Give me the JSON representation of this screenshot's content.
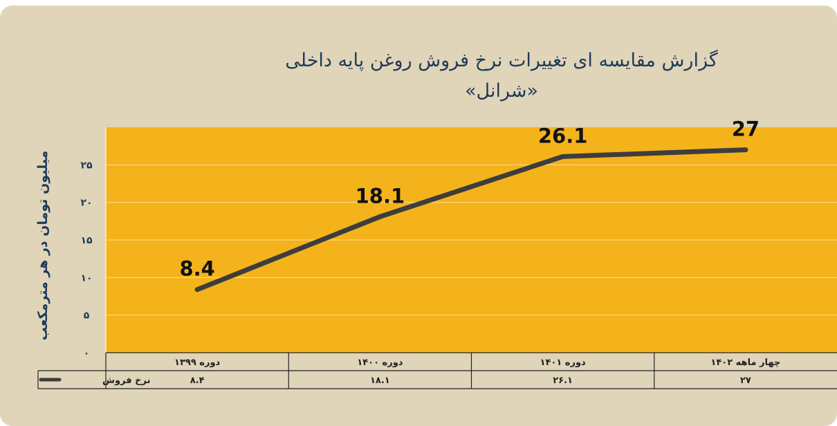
{
  "title_line1": "گزارش مقایسه ای تغییرات نرخ فروش روغن پایه داخلی",
  "title_line2": "«شرانل»",
  "chart_data": {
    "type": "line",
    "title": "گزارش مقایسه ای تغییرات نرخ فروش روغن پایه داخلی «شرانل»",
    "ylabel": "میلیون تومان در هر مترمکعب",
    "xlabel": "",
    "categories": [
      "دوره ۱۳۹۹",
      "دوره ۱۴۰۰",
      "دوره ۱۴۰۱",
      "چهار ماهه ۱۴۰۲"
    ],
    "y_ticks": [
      {
        "value": 0,
        "label": "۰"
      },
      {
        "value": 5,
        "label": "۵"
      },
      {
        "value": 10,
        "label": "۱۰"
      },
      {
        "value": 15,
        "label": "۱۵"
      },
      {
        "value": 20,
        "label": "۲۰"
      },
      {
        "value": 25,
        "label": "۲۵"
      }
    ],
    "ylim": [
      0,
      30
    ],
    "grid": true,
    "legend": "table-left",
    "series": [
      {
        "name": "نرخ فروش",
        "values": [
          8.4,
          18.1,
          26.1,
          27
        ],
        "labels": [
          "8.4",
          "18.1",
          "26.1",
          "27"
        ],
        "table_values": [
          "۸.۴",
          "۱۸.۱",
          "۲۶.۱",
          "۲۷"
        ],
        "color": "#3d3d3d"
      }
    ],
    "colors": {
      "plot_bg": "#f5b31b",
      "card_bg": "#e0d5b9",
      "text": "#1f3a5a"
    }
  }
}
